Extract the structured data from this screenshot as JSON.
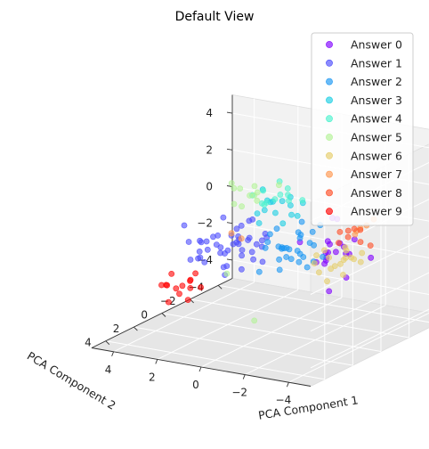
{
  "chart_data": {
    "type": "scatter",
    "title": "Default View",
    "xlabel": "PCA Component 1",
    "ylabel": "PCA Component 2",
    "zlabel": "",
    "xlim": [
      -5,
      5
    ],
    "ylim": [
      -5,
      5
    ],
    "zlim": [
      -5,
      5
    ],
    "x_ticks": [
      "4",
      "2",
      "0",
      "−2",
      "−4"
    ],
    "y_ticks": [
      "−4",
      "−2",
      "0",
      "2",
      "4"
    ],
    "z_ticks": [
      "4",
      "2",
      "0",
      "−2",
      "−4"
    ],
    "grid": true,
    "legend_position": "top-right",
    "series": [
      {
        "name": "Answer 0",
        "color": "#8000ff",
        "points": [
          [
            -3.2,
            0.4,
            0.2
          ],
          [
            -3.0,
            -0.2,
            0.4
          ],
          [
            -2.9,
            0.6,
            -0.1
          ],
          [
            -3.4,
            0.0,
            0.0
          ],
          [
            -2.7,
            0.2,
            0.6
          ],
          [
            -3.1,
            0.8,
            0.3
          ],
          [
            -3.3,
            -0.4,
            -0.2
          ],
          [
            -2.8,
            0.5,
            0.1
          ],
          [
            -3.5,
            0.3,
            0.5
          ],
          [
            -2.6,
            -0.1,
            0.3
          ],
          [
            -3.0,
            0.9,
            -0.3
          ],
          [
            -3.6,
            -0.3,
            0.7
          ],
          [
            -2.5,
            0.7,
            -0.4
          ],
          [
            -3.2,
            1.1,
            0.0
          ],
          [
            -3.8,
            0.6,
            -1.0
          ],
          [
            -2.4,
            -0.6,
            1.5
          ],
          [
            -3.9,
            -1.0,
            -0.5
          ],
          [
            -2.2,
            1.4,
            0.9
          ],
          [
            -3.0,
            0.0,
            1.8
          ],
          [
            -3.4,
            1.2,
            -1.6
          ]
        ]
      },
      {
        "name": "Answer 1",
        "color": "#4d4dfc",
        "points": [
          [
            1.5,
            0.0,
            -0.5
          ],
          [
            1.8,
            0.3,
            -0.8
          ],
          [
            1.2,
            -0.2,
            -0.3
          ],
          [
            2.0,
            0.5,
            -0.6
          ],
          [
            1.6,
            -0.4,
            -1.0
          ],
          [
            1.3,
            0.7,
            -0.2
          ],
          [
            2.2,
            -0.1,
            -1.2
          ],
          [
            1.7,
            0.2,
            0.0
          ],
          [
            1.1,
            0.4,
            -0.9
          ],
          [
            1.9,
            -0.6,
            -0.4
          ],
          [
            2.4,
            0.8,
            -0.7
          ],
          [
            1.4,
            1.0,
            -1.3
          ],
          [
            2.1,
            -0.8,
            -0.1
          ],
          [
            1.0,
            -0.5,
            -0.6
          ],
          [
            2.6,
            0.1,
            -0.3
          ],
          [
            1.5,
            1.3,
            -0.5
          ],
          [
            2.3,
            -1.1,
            -1.0
          ],
          [
            0.9,
            0.9,
            0.2
          ],
          [
            1.8,
            0.6,
            -1.6
          ],
          [
            2.7,
            -0.3,
            -0.9
          ],
          [
            1.2,
            -1.2,
            -0.7
          ],
          [
            2.0,
            1.5,
            0.1
          ],
          [
            3.0,
            0.4,
            -1.4
          ],
          [
            0.7,
            0.2,
            -1.1
          ],
          [
            1.6,
            -0.9,
            0.4
          ],
          [
            2.5,
            1.1,
            -0.2
          ],
          [
            1.3,
            0.1,
            -1.8
          ],
          [
            2.9,
            -0.7,
            -0.6
          ],
          [
            0.8,
            -0.8,
            -0.1
          ],
          [
            1.9,
            1.8,
            -0.9
          ],
          [
            3.2,
            0.9,
            -0.4
          ],
          [
            1.4,
            -1.5,
            -1.2
          ],
          [
            2.2,
            0.0,
            0.8
          ],
          [
            0.5,
            0.6,
            -0.5
          ],
          [
            2.8,
            1.4,
            -1.1
          ],
          [
            1.7,
            -1.3,
            0.3
          ],
          [
            3.4,
            -0.2,
            -0.8
          ],
          [
            1.1,
            1.6,
            -1.5
          ],
          [
            2.4,
            -1.6,
            -0.3
          ],
          [
            0.6,
            -0.3,
            -1.4
          ],
          [
            3.6,
            0.6,
            0.3
          ],
          [
            2.0,
            2.1,
            -0.6
          ],
          [
            1.5,
            -2.0,
            -0.9
          ],
          [
            3.8,
            -0.8,
            -1.7
          ],
          [
            0.3,
            1.1,
            0.5
          ]
        ]
      },
      {
        "name": "Answer 2",
        "color": "#1996f3",
        "points": [
          [
            -1.2,
            0.6,
            0.0
          ],
          [
            -1.5,
            0.3,
            -0.3
          ],
          [
            -0.9,
            0.9,
            0.2
          ],
          [
            -1.3,
            0.0,
            0.4
          ],
          [
            -1.0,
            0.5,
            -0.5
          ],
          [
            -1.7,
            0.8,
            0.1
          ],
          [
            -0.7,
            0.2,
            -0.2
          ],
          [
            -1.4,
            1.1,
            0.3
          ],
          [
            -1.1,
            -0.2,
            0.6
          ],
          [
            -0.8,
            0.7,
            -0.6
          ],
          [
            -1.6,
            0.4,
            0.8
          ],
          [
            -1.9,
            1.0,
            -0.4
          ],
          [
            -0.6,
            1.2,
            0.5
          ],
          [
            -1.2,
            -0.4,
            -0.8
          ],
          [
            -2.0,
            0.1,
            0.2
          ],
          [
            -0.5,
            0.4,
            0.9
          ],
          [
            -1.8,
            1.4,
            -0.1
          ],
          [
            -1.0,
            -0.6,
            1.0
          ],
          [
            -1.4,
            1.6,
            -0.7
          ],
          [
            -0.4,
            -0.1,
            -0.4
          ],
          [
            -2.2,
            0.7,
            0.6
          ],
          [
            -0.9,
            1.5,
            1.1
          ],
          [
            -1.6,
            -0.5,
            -1.0
          ],
          [
            -2.4,
            1.2,
            -0.5
          ],
          [
            -0.3,
            0.9,
            0.0
          ],
          [
            -1.3,
            -0.9,
            0.4
          ],
          [
            -2.1,
            -0.2,
            1.2
          ],
          [
            -0.6,
            1.8,
            -0.9
          ],
          [
            -1.7,
            1.9,
            0.7
          ],
          [
            -2.6,
            0.4,
            -0.2
          ]
        ]
      },
      {
        "name": "Answer 3",
        "color": "#1acee3",
        "points": [
          [
            -0.5,
            0.5,
            1.8
          ],
          [
            -1.0,
            0.2,
            2.2
          ],
          [
            -0.2,
            0.8,
            2.0
          ],
          [
            -0.8,
            -0.1,
            2.5
          ],
          [
            -1.3,
            0.6,
            1.9
          ],
          [
            0.0,
            0.3,
            2.3
          ],
          [
            -0.6,
            1.0,
            2.6
          ],
          [
            -1.1,
            0.9,
            1.5
          ],
          [
            -0.3,
            -0.3,
            2.1
          ],
          [
            -1.5,
            0.1,
            2.4
          ],
          [
            0.2,
            0.7,
            1.7
          ],
          [
            -0.9,
            1.3,
            2.8
          ],
          [
            -1.7,
            0.8,
            2.0
          ],
          [
            -0.4,
            1.5,
            1.6
          ],
          [
            0.4,
            0.0,
            2.7
          ]
        ]
      },
      {
        "name": "Answer 4",
        "color": "#4cf2ce",
        "points": [
          [
            -0.8,
            1.0,
            2.8
          ],
          [
            -1.2,
            0.7,
            3.0
          ],
          [
            -0.4,
            1.3,
            2.6
          ],
          [
            -1.0,
            0.4,
            3.2
          ],
          [
            -1.5,
            1.1,
            2.9
          ],
          [
            -0.2,
            0.9,
            3.1
          ],
          [
            -0.7,
            1.6,
            2.7
          ],
          [
            -1.3,
            1.4,
            3.3
          ],
          [
            -0.5,
            0.2,
            3.4
          ],
          [
            -1.8,
            0.6,
            2.8
          ],
          [
            0.1,
            1.2,
            2.9
          ],
          [
            -1.0,
            1.9,
            3.0
          ]
        ]
      },
      {
        "name": "Answer 5",
        "color": "#b3f396",
        "points": [
          [
            0.4,
            0.6,
            2.6
          ],
          [
            0.0,
            1.0,
            3.0
          ],
          [
            0.8,
            0.3,
            2.4
          ],
          [
            -0.3,
            1.5,
            2.8
          ],
          [
            1.2,
            0.8,
            2.9
          ],
          [
            0.6,
            1.3,
            3.2
          ],
          [
            -0.6,
            0.4,
            3.3
          ],
          [
            0.9,
            -0.2,
            2.7
          ],
          [
            0.2,
            1.8,
            2.5
          ],
          [
            1.5,
            0.5,
            3.0
          ],
          [
            1.0,
            1.1,
            2.2
          ],
          [
            3.0,
            -1.5,
            -3.0
          ],
          [
            -0.5,
            2.0,
            -3.5
          ]
        ]
      },
      {
        "name": "Answer 6",
        "color": "#e6ce6b",
        "points": [
          [
            -1.6,
            -1.6,
            -1.2
          ],
          [
            -2.0,
            -1.4,
            -1.5
          ],
          [
            -1.2,
            -1.9,
            -1.0
          ],
          [
            -1.8,
            -2.1,
            -1.7
          ],
          [
            -2.3,
            -1.7,
            -1.1
          ],
          [
            -1.4,
            -1.2,
            -1.9
          ],
          [
            -2.1,
            -2.4,
            -1.4
          ],
          [
            -1.0,
            -1.5,
            -1.6
          ],
          [
            -2.5,
            -1.2,
            -1.8
          ],
          [
            -1.7,
            -2.6,
            -1.0
          ],
          [
            -1.3,
            -2.2,
            -2.1
          ],
          [
            -2.2,
            -1.9,
            -0.8
          ],
          [
            -2.6,
            -2.3,
            -1.5
          ],
          [
            -0.9,
            -1.8,
            -1.3
          ],
          [
            -1.9,
            -1.0,
            -2.2
          ],
          [
            -2.4,
            -2.7,
            -1.2
          ],
          [
            -1.5,
            -2.8,
            -1.8
          ],
          [
            -2.8,
            -1.5,
            -1.0
          ]
        ]
      },
      {
        "name": "Answer 7",
        "color": "#ff964e",
        "points": [
          [
            -2.8,
            -2.4,
            0.5
          ],
          [
            -2.6,
            -2.0,
            0.3
          ],
          [
            -3.0,
            -2.6,
            0.8
          ],
          [
            -2.4,
            -2.2,
            0.0
          ],
          [
            -2.9,
            -1.8,
            0.6
          ],
          [
            2.6,
            -1.2,
            -0.6
          ],
          [
            2.4,
            -1.6,
            -1.0
          ]
        ]
      },
      {
        "name": "Answer 8",
        "color": "#ff4e26",
        "points": [
          [
            -2.6,
            -1.4,
            0.2
          ],
          [
            -2.9,
            -1.8,
            0.5
          ],
          [
            -2.3,
            -1.2,
            -0.1
          ],
          [
            -3.1,
            -1.5,
            0.0
          ],
          [
            -2.5,
            -2.0,
            0.4
          ],
          [
            -2.8,
            -1.1,
            0.7
          ],
          [
            -3.3,
            -1.9,
            -0.3
          ],
          [
            -2.1,
            -1.6,
            0.3
          ]
        ]
      },
      {
        "name": "Answer 9",
        "color": "#ff0000",
        "points": [
          [
            2.8,
            1.4,
            -2.2
          ],
          [
            3.2,
            1.8,
            -2.6
          ],
          [
            2.5,
            1.9,
            -2.0
          ],
          [
            3.0,
            1.1,
            -2.8
          ],
          [
            3.4,
            2.2,
            -2.3
          ],
          [
            2.6,
            2.5,
            -2.5
          ],
          [
            3.6,
            1.5,
            -2.0
          ],
          [
            2.9,
            2.8,
            -2.9
          ],
          [
            2.2,
            1.6,
            -2.4
          ],
          [
            3.3,
            1.2,
            -2.7
          ],
          [
            3.1,
            2.6,
            -2.1
          ],
          [
            2.4,
            2.2,
            -2.9
          ],
          [
            3.8,
            1.9,
            -2.5
          ],
          [
            2.7,
            1.2,
            -1.9
          ]
        ]
      }
    ]
  }
}
